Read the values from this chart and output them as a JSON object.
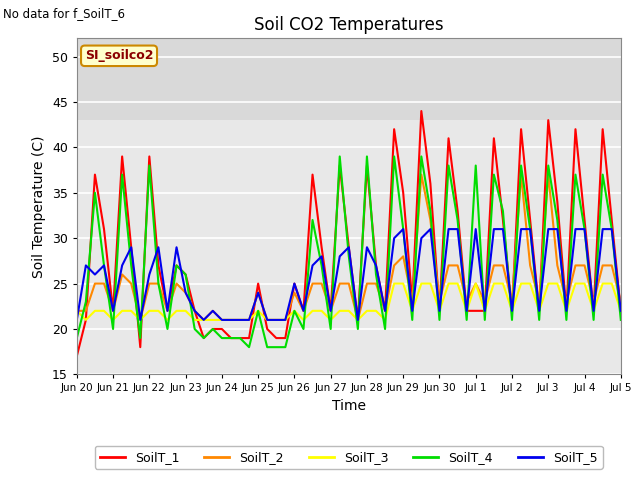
{
  "title": "Soil CO2 Temperatures",
  "xlabel": "Time",
  "ylabel": "Soil Temperature (C)",
  "ylim": [
    15,
    52
  ],
  "yticks": [
    15,
    20,
    25,
    30,
    35,
    40,
    45,
    50
  ],
  "note": "No data for f_SoilT_6",
  "box_label": "SI_soilco2",
  "legend_entries": [
    "SoilT_1",
    "SoilT_2",
    "SoilT_3",
    "SoilT_4",
    "SoilT_5"
  ],
  "line_colors": [
    "#ff0000",
    "#ff8800",
    "#ffff00",
    "#00dd00",
    "#0000ee"
  ],
  "tick_labels": [
    "Jun 20",
    "Jun 21",
    "Jun 22",
    "Jun 23",
    "Jun 24",
    "Jun 25",
    "Jun 26",
    "Jun 27",
    "Jun 28",
    "Jun 29",
    "Jun 30",
    "Jul 1",
    "Jul 2",
    "Jul 3",
    "Jul 4",
    "Jul 5"
  ],
  "SoilT_1": [
    17,
    21,
    37,
    31,
    22,
    39,
    29,
    18,
    39,
    27,
    22,
    27,
    26,
    22,
    19,
    20,
    20,
    19,
    19,
    19,
    25,
    20,
    19,
    19,
    25,
    22,
    37,
    29,
    22,
    38,
    29,
    21,
    38,
    27,
    22,
    42,
    35,
    23,
    44,
    36,
    22,
    41,
    33,
    22,
    22,
    22,
    41,
    32,
    22,
    42,
    32,
    22,
    43,
    34,
    22,
    42,
    32,
    22,
    42,
    32,
    22
  ],
  "SoilT_2": [
    22,
    22,
    25,
    25,
    22,
    26,
    25,
    21,
    25,
    25,
    22,
    25,
    24,
    22,
    21,
    22,
    21,
    21,
    21,
    21,
    24,
    21,
    21,
    21,
    24,
    22,
    25,
    25,
    22,
    25,
    25,
    21,
    25,
    25,
    22,
    27,
    28,
    23,
    37,
    32,
    23,
    27,
    27,
    23,
    25,
    23,
    27,
    27,
    23,
    37,
    27,
    23,
    37,
    27,
    23,
    27,
    27,
    23,
    27,
    27,
    23
  ],
  "SoilT_3": [
    22,
    21,
    22,
    22,
    21,
    22,
    22,
    21,
    22,
    22,
    21,
    22,
    22,
    21,
    21,
    21,
    21,
    21,
    21,
    21,
    22,
    21,
    21,
    21,
    22,
    21,
    22,
    22,
    21,
    22,
    22,
    21,
    22,
    22,
    21,
    25,
    25,
    22,
    25,
    25,
    22,
    25,
    25,
    22,
    25,
    22,
    25,
    25,
    22,
    25,
    25,
    22,
    25,
    25,
    22,
    25,
    25,
    22,
    25,
    25,
    22
  ],
  "SoilT_4": [
    19,
    23,
    35,
    27,
    20,
    37,
    27,
    19,
    38,
    25,
    20,
    27,
    26,
    20,
    19,
    20,
    19,
    19,
    19,
    18,
    22,
    18,
    18,
    18,
    22,
    20,
    32,
    27,
    20,
    39,
    28,
    20,
    39,
    26,
    20,
    39,
    31,
    21,
    39,
    33,
    21,
    38,
    32,
    21,
    38,
    21,
    37,
    33,
    21,
    38,
    31,
    21,
    38,
    32,
    21,
    37,
    31,
    21,
    37,
    31,
    21
  ],
  "SoilT_5": [
    21,
    27,
    26,
    27,
    22,
    27,
    29,
    21,
    26,
    29,
    22,
    29,
    24,
    22,
    21,
    22,
    21,
    21,
    21,
    21,
    24,
    21,
    21,
    21,
    25,
    22,
    27,
    28,
    22,
    28,
    29,
    21,
    29,
    27,
    22,
    30,
    31,
    22,
    30,
    31,
    22,
    31,
    31,
    22,
    31,
    22,
    31,
    31,
    22,
    31,
    31,
    22,
    31,
    31,
    22,
    31,
    31,
    22,
    31,
    31,
    22
  ]
}
